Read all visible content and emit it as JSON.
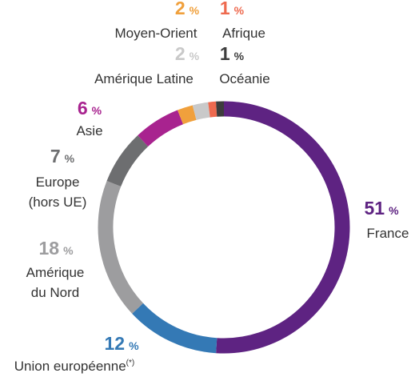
{
  "chart_data": {
    "type": "pie",
    "donut": true,
    "unit": "%",
    "footnote_mark": "(*)",
    "categories": [
      [
        "France"
      ],
      [
        "Union européenne"
      ],
      [
        "Amérique",
        "du Nord"
      ],
      [
        "Europe",
        "(hors UE)"
      ],
      [
        "Asie"
      ],
      [
        "Moyen-Orient"
      ],
      [
        "Amérique Latine"
      ],
      [
        "Afrique"
      ],
      [
        "Océanie"
      ]
    ],
    "values": [
      51,
      12,
      18,
      7,
      6,
      2,
      2,
      1,
      1
    ],
    "colors": [
      "#5e2382",
      "#3479b5",
      "#9d9d9f",
      "#6d6e70",
      "#a8238f",
      "#f0a03c",
      "#c9c9c9",
      "#ee6a4f",
      "#3d3d3d"
    ]
  }
}
